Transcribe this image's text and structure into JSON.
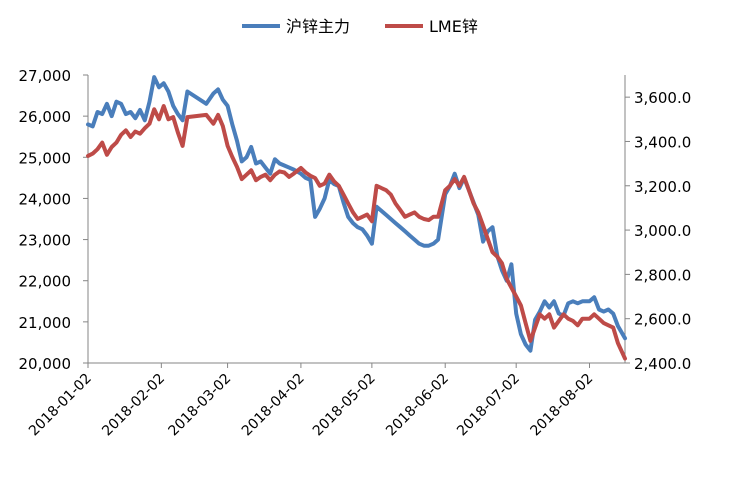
{
  "chart_data": {
    "type": "line",
    "title": "",
    "legend_position": "top",
    "grid": false,
    "legend": [
      {
        "name": "沪锌主力",
        "color": "#4a7ebb"
      },
      {
        "name": "LME锌",
        "color": "#be4b48"
      }
    ],
    "y_left": {
      "range": [
        20000,
        27000
      ],
      "ticks": [
        "20,000",
        "21,000",
        "22,000",
        "23,000",
        "24,000",
        "25,000",
        "26,000",
        "27,000"
      ]
    },
    "y_right": {
      "range": [
        2400,
        3700
      ],
      "ticks": [
        "2,400.0",
        "2,600.0",
        "2,800.0",
        "3,000.0",
        "3,200.0",
        "3,400.0",
        "3,600.0"
      ]
    },
    "x_range": [
      "2018-01-02",
      "2018-08-17"
    ],
    "x_ticks": [
      "2018-01-02",
      "2018-02-02",
      "2018-03-02",
      "2018-04-02",
      "2018-05-02",
      "2018-06-02",
      "2018-07-02",
      "2018-08-02"
    ],
    "series": [
      {
        "name": "沪锌主力",
        "axis": "left",
        "color": "#4a7ebb",
        "x": [
          "2018-01-02",
          "2018-01-04",
          "2018-01-06",
          "2018-01-08",
          "2018-01-10",
          "2018-01-12",
          "2018-01-14",
          "2018-01-16",
          "2018-01-18",
          "2018-01-20",
          "2018-01-22",
          "2018-01-24",
          "2018-01-26",
          "2018-01-28",
          "2018-01-30",
          "2018-02-01",
          "2018-02-03",
          "2018-02-05",
          "2018-02-07",
          "2018-02-09",
          "2018-02-11",
          "2018-02-13",
          "2018-02-21",
          "2018-02-24",
          "2018-02-26",
          "2018-02-28",
          "2018-03-02",
          "2018-03-04",
          "2018-03-06",
          "2018-03-08",
          "2018-03-10",
          "2018-03-12",
          "2018-03-14",
          "2018-03-16",
          "2018-03-18",
          "2018-03-20",
          "2018-03-22",
          "2018-03-24",
          "2018-03-26",
          "2018-03-28",
          "2018-03-30",
          "2018-04-02",
          "2018-04-04",
          "2018-04-06",
          "2018-04-08",
          "2018-04-10",
          "2018-04-12",
          "2018-04-14",
          "2018-04-16",
          "2018-04-18",
          "2018-04-20",
          "2018-04-22",
          "2018-04-24",
          "2018-04-26",
          "2018-04-28",
          "2018-04-30",
          "2018-05-02",
          "2018-05-04",
          "2018-05-06",
          "2018-05-08",
          "2018-05-10",
          "2018-05-12",
          "2018-05-14",
          "2018-05-16",
          "2018-05-18",
          "2018-05-20",
          "2018-05-22",
          "2018-05-24",
          "2018-05-26",
          "2018-05-28",
          "2018-05-30",
          "2018-06-02",
          "2018-06-04",
          "2018-06-06",
          "2018-06-08",
          "2018-06-10",
          "2018-06-12",
          "2018-06-14",
          "2018-06-16",
          "2018-06-18",
          "2018-06-20",
          "2018-06-22",
          "2018-06-24",
          "2018-06-26",
          "2018-06-28",
          "2018-06-30",
          "2018-07-02",
          "2018-07-04",
          "2018-07-06",
          "2018-07-08",
          "2018-07-10",
          "2018-07-12",
          "2018-07-14",
          "2018-07-16",
          "2018-07-18",
          "2018-07-20",
          "2018-07-22",
          "2018-07-24",
          "2018-07-26",
          "2018-07-28",
          "2018-07-30",
          "2018-08-02",
          "2018-08-04",
          "2018-08-06",
          "2018-08-08",
          "2018-08-10",
          "2018-08-12",
          "2018-08-14",
          "2018-08-17"
        ],
        "values": [
          25800,
          25750,
          26100,
          26050,
          26300,
          26000,
          26350,
          26300,
          26050,
          26100,
          25950,
          26150,
          25900,
          26350,
          26950,
          26700,
          26800,
          26600,
          26250,
          26050,
          25900,
          26600,
          26300,
          26550,
          26650,
          26400,
          26250,
          25800,
          25400,
          24900,
          25000,
          25250,
          24850,
          24900,
          24750,
          24600,
          24950,
          24850,
          24800,
          24750,
          24700,
          24600,
          24500,
          24450,
          23550,
          23750,
          24000,
          24450,
          24350,
          24300,
          23900,
          23550,
          23400,
          23300,
          23250,
          23100,
          22900,
          23800,
          23700,
          23600,
          23500,
          23400,
          23300,
          23200,
          23100,
          23000,
          22900,
          22850,
          22850,
          22900,
          23000,
          24100,
          24300,
          24600,
          24250,
          24500,
          24200,
          23900,
          23600,
          22950,
          23200,
          23300,
          22600,
          22250,
          22000,
          22400,
          21200,
          20700,
          20450,
          20300,
          21050,
          21250,
          21500,
          21350,
          21500,
          21200,
          21150,
          21450,
          21500,
          21450,
          21500,
          21500,
          21600,
          21300,
          21250,
          21300,
          21200,
          20900,
          20600
        ]
      },
      {
        "name": "LME锌",
        "axis": "right",
        "color": "#be4b48",
        "x": [
          "2018-01-02",
          "2018-01-04",
          "2018-01-06",
          "2018-01-08",
          "2018-01-10",
          "2018-01-12",
          "2018-01-14",
          "2018-01-16",
          "2018-01-18",
          "2018-01-20",
          "2018-01-22",
          "2018-01-24",
          "2018-01-26",
          "2018-01-28",
          "2018-01-30",
          "2018-02-01",
          "2018-02-03",
          "2018-02-05",
          "2018-02-07",
          "2018-02-09",
          "2018-02-11",
          "2018-02-13",
          "2018-02-21",
          "2018-02-24",
          "2018-02-26",
          "2018-02-28",
          "2018-03-02",
          "2018-03-04",
          "2018-03-06",
          "2018-03-08",
          "2018-03-10",
          "2018-03-12",
          "2018-03-14",
          "2018-03-16",
          "2018-03-18",
          "2018-03-20",
          "2018-03-22",
          "2018-03-24",
          "2018-03-26",
          "2018-03-28",
          "2018-03-30",
          "2018-04-02",
          "2018-04-04",
          "2018-04-06",
          "2018-04-08",
          "2018-04-10",
          "2018-04-12",
          "2018-04-14",
          "2018-04-16",
          "2018-04-18",
          "2018-04-20",
          "2018-04-22",
          "2018-04-24",
          "2018-04-26",
          "2018-04-28",
          "2018-04-30",
          "2018-05-02",
          "2018-05-04",
          "2018-05-06",
          "2018-05-08",
          "2018-05-10",
          "2018-05-12",
          "2018-05-14",
          "2018-05-16",
          "2018-05-18",
          "2018-05-20",
          "2018-05-22",
          "2018-05-24",
          "2018-05-26",
          "2018-05-28",
          "2018-05-30",
          "2018-06-02",
          "2018-06-04",
          "2018-06-06",
          "2018-06-08",
          "2018-06-10",
          "2018-06-12",
          "2018-06-14",
          "2018-06-16",
          "2018-06-18",
          "2018-06-20",
          "2018-06-22",
          "2018-06-24",
          "2018-06-26",
          "2018-06-28",
          "2018-06-30",
          "2018-07-02",
          "2018-07-04",
          "2018-07-06",
          "2018-07-08",
          "2018-07-10",
          "2018-07-12",
          "2018-07-14",
          "2018-07-16",
          "2018-07-18",
          "2018-07-20",
          "2018-07-22",
          "2018-07-24",
          "2018-07-26",
          "2018-07-28",
          "2018-07-30",
          "2018-08-02",
          "2018-08-04",
          "2018-08-06",
          "2018-08-08",
          "2018-08-10",
          "2018-08-12",
          "2018-08-14",
          "2018-08-17"
        ],
        "values": [
          3335,
          3345,
          3365,
          3395,
          3340,
          3375,
          3395,
          3430,
          3450,
          3420,
          3445,
          3435,
          3460,
          3480,
          3545,
          3500,
          3560,
          3500,
          3510,
          3440,
          3380,
          3510,
          3520,
          3480,
          3520,
          3470,
          3380,
          3330,
          3285,
          3230,
          3250,
          3270,
          3225,
          3240,
          3250,
          3225,
          3250,
          3265,
          3260,
          3240,
          3255,
          3280,
          3260,
          3245,
          3235,
          3200,
          3210,
          3250,
          3220,
          3200,
          3160,
          3120,
          3080,
          3050,
          3060,
          3070,
          3040,
          3200,
          3190,
          3180,
          3160,
          3120,
          3090,
          3060,
          3070,
          3080,
          3060,
          3050,
          3045,
          3060,
          3060,
          3180,
          3200,
          3230,
          3200,
          3240,
          3180,
          3120,
          3080,
          3020,
          2960,
          2900,
          2880,
          2850,
          2780,
          2740,
          2700,
          2660,
          2580,
          2500,
          2560,
          2620,
          2600,
          2620,
          2560,
          2590,
          2620,
          2600,
          2590,
          2570,
          2600,
          2600,
          2620,
          2600,
          2580,
          2570,
          2560,
          2490,
          2420
        ]
      }
    ]
  }
}
